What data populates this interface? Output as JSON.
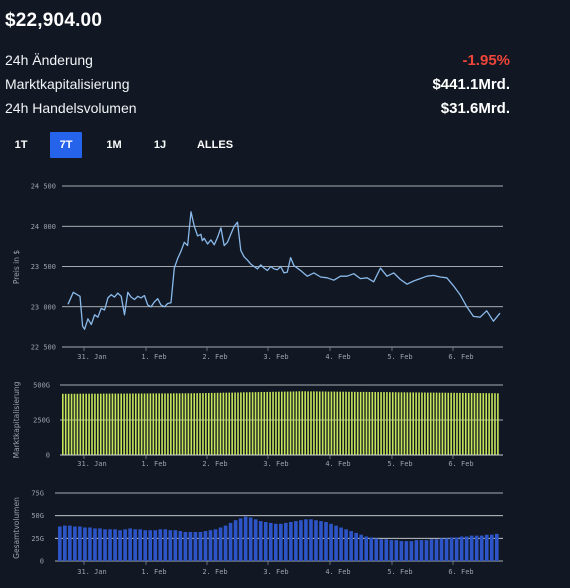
{
  "header": {
    "price": "$22,904.00"
  },
  "stats": [
    {
      "label": "24h Änderung",
      "value": "-1.95%",
      "color": "#f0453a"
    },
    {
      "label": "Marktkapitalisierung",
      "value": "$441.1Mrd.",
      "color": "#ffffff"
    },
    {
      "label": "24h Handelsvolumen",
      "value": "$31.6Mrd.",
      "color": "#ffffff"
    }
  ],
  "range_tabs": [
    {
      "label": "1T",
      "active": false
    },
    {
      "label": "7T",
      "active": true
    },
    {
      "label": "1M",
      "active": false
    },
    {
      "label": "1J",
      "active": false
    },
    {
      "label": "ALLES",
      "active": false
    }
  ],
  "colors": {
    "price_line": "#8ab9ea",
    "market_cap_bars": "#c8e55a",
    "volume_bars": "#2d55c8",
    "gridline": "#d9dde2",
    "active_tab": "#2563eb"
  },
  "chart_data": [
    {
      "type": "line",
      "ylabel": "Preis in $",
      "ylim": [
        22500,
        24500
      ],
      "yticks": [
        "24 500",
        "24 000",
        "23 500",
        "23 000",
        "22 500"
      ],
      "xticks": [
        "31. Jan",
        "1. Feb",
        "2. Feb",
        "3. Feb",
        "4. Feb",
        "5. Feb",
        "6. Feb"
      ],
      "grid": true,
      "x": [
        0,
        0.08,
        0.12,
        0.18,
        0.22,
        0.25,
        0.3,
        0.35,
        0.4,
        0.45,
        0.5,
        0.55,
        0.6,
        0.65,
        0.7,
        0.75,
        0.8,
        0.85,
        0.9,
        0.95,
        1.0,
        1.05,
        1.1,
        1.15,
        1.2,
        1.25,
        1.3,
        1.35,
        1.4,
        1.45,
        1.5,
        1.55,
        1.6,
        1.65,
        1.7,
        1.75,
        1.8,
        1.85,
        1.9,
        1.95,
        2.0,
        2.02,
        2.05,
        2.1,
        2.15,
        2.2,
        2.25,
        2.3,
        2.35,
        2.4,
        2.45,
        2.5,
        2.55,
        2.6,
        2.65,
        2.7,
        2.75,
        2.8,
        2.85,
        2.9,
        2.95,
        3.0,
        3.05,
        3.1,
        3.15,
        3.2,
        3.25,
        3.3,
        3.35,
        3.4,
        3.5,
        3.6,
        3.7,
        3.8,
        3.9,
        4.0,
        4.1,
        4.2,
        4.3,
        4.4,
        4.5,
        4.6,
        4.7,
        4.8,
        4.9,
        5.0,
        5.1,
        5.2,
        5.3,
        5.4,
        5.5,
        5.6,
        5.7,
        5.8,
        5.9,
        6.0,
        6.1,
        6.2,
        6.3,
        6.4,
        6.5
      ],
      "series": [
        {
          "values": [
            23030,
            23180,
            23160,
            23130,
            22760,
            22720,
            22850,
            22780,
            22900,
            22870,
            22980,
            22960,
            23110,
            23150,
            23120,
            23170,
            23130,
            22900,
            23180,
            23120,
            23090,
            23130,
            23110,
            23140,
            23020,
            23000,
            23060,
            23100,
            23020,
            23000,
            23040,
            23050,
            23480,
            23600,
            23690,
            23800,
            23760,
            24180,
            24000,
            23880,
            23900,
            23820,
            23850,
            23780,
            23830,
            23770,
            23860,
            23980,
            23760,
            23800,
            23900,
            24000,
            24050,
            23700,
            23620,
            23580,
            23530,
            23500,
            23470,
            23520,
            23480,
            23450,
            23500,
            23470,
            23460,
            23500,
            23420,
            23430,
            23610,
            23510,
            23450,
            23380,
            23420,
            23370,
            23360,
            23330,
            23380,
            23380,
            23410,
            23350,
            23360,
            23310,
            23480,
            23380,
            23420,
            23340,
            23280,
            23320,
            23350,
            23380,
            23390,
            23370,
            23360,
            23260,
            23150,
            23000,
            22880,
            22870,
            22950,
            22820,
            22920
          ]
        }
      ]
    },
    {
      "type": "bar",
      "ylabel": "Marktkapitalisierung",
      "ylim": [
        0,
        500
      ],
      "yticks": [
        "500G",
        "250G",
        "0"
      ],
      "xticks": [
        "31. Jan",
        "1. Feb",
        "2. Feb",
        "3. Feb",
        "4. Feb",
        "5. Feb",
        "6. Feb"
      ],
      "grid": true,
      "series": [
        {
          "values_first": 437,
          "values_peak": 455,
          "values_last": 441
        }
      ]
    },
    {
      "type": "bar",
      "ylabel": "Gesamtvolumen",
      "ylim": [
        0,
        75
      ],
      "yticks": [
        "75G",
        "50G",
        "25G",
        "0"
      ],
      "xticks": [
        "31. Jan",
        "1. Feb",
        "2. Feb",
        "3. Feb",
        "4. Feb",
        "5. Feb",
        "6. Feb"
      ],
      "grid": true,
      "series": [
        {
          "values": [
            38,
            39,
            39,
            38,
            38,
            37,
            37,
            36,
            36,
            35,
            35,
            35,
            34,
            35,
            36,
            35,
            35,
            34,
            34,
            34,
            35,
            35,
            34,
            34,
            33,
            32,
            32,
            32,
            32,
            33,
            34,
            35,
            37,
            39,
            42,
            45,
            47,
            49,
            48,
            46,
            44,
            43,
            42,
            41,
            41,
            42,
            43,
            44,
            45,
            46,
            46,
            45,
            44,
            43,
            41,
            39,
            37,
            35,
            33,
            31,
            29,
            27,
            26,
            25,
            24,
            24,
            23,
            23,
            22,
            22,
            22,
            23,
            23,
            23,
            24,
            24,
            25,
            25,
            26,
            26,
            27,
            27,
            28,
            28,
            28,
            29,
            29,
            30
          ]
        }
      ]
    }
  ]
}
